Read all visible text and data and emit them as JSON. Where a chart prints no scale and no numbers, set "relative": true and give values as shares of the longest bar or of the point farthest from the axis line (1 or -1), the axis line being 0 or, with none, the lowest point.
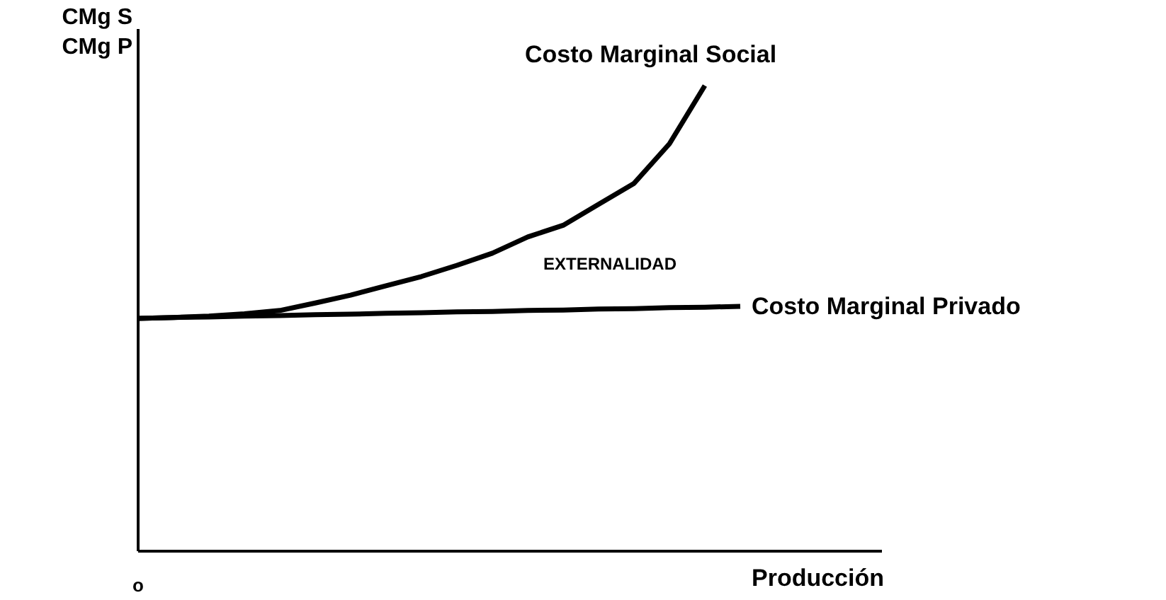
{
  "chart_data": {
    "type": "line",
    "relative": true,
    "xlabel": "Producción",
    "ylabel": "CMg S\nCMg P",
    "categories": [
      null,
      null,
      null,
      null,
      null,
      null,
      null,
      null,
      null,
      null,
      null,
      null,
      null,
      null,
      null,
      null,
      null,
      null,
      null,
      null,
      null,
      null
    ],
    "series": [
      {
        "name": "Costo Marginal Social",
        "color": "#000000",
        "values": [
          0.5,
          0.502,
          0.505,
          0.51,
          0.517,
          0.533,
          0.55,
          0.57,
          0.59,
          0.614,
          0.64,
          0.675,
          0.7,
          0.745,
          0.79,
          0.875,
          1.0,
          null,
          null,
          null,
          null,
          null
        ]
      },
      {
        "name": "Costo Marginal Privado",
        "color": "#000000",
        "values": [
          0.5,
          0.502,
          0.503,
          0.505,
          0.506,
          0.508,
          0.509,
          0.511,
          0.512,
          0.514,
          0.515,
          0.517,
          0.518,
          0.52,
          0.521,
          0.523,
          0.524,
          0.526,
          null,
          null,
          null,
          null
        ]
      }
    ],
    "annotations": [
      "o",
      "EXTERNALIDAD"
    ],
    "line_style": "solid"
  }
}
